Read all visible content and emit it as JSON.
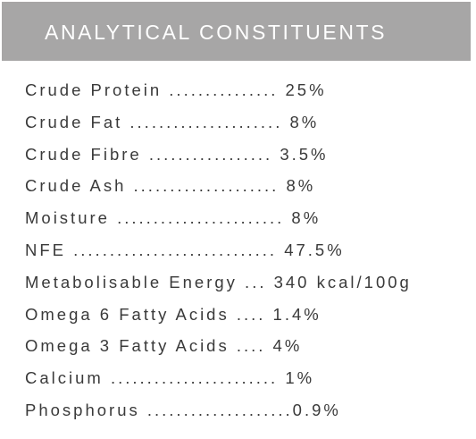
{
  "header": {
    "title": "ANALYTICAL CONSTITUENTS"
  },
  "rows": [
    "Crude Protein ............... 25%",
    "Crude Fat ..................... 8%",
    "Crude Fibre ................. 3.5%",
    "Crude Ash .................... 8%",
    "Moisture ....................... 8%",
    "NFE ............................ 47.5%",
    "Metabolisable Energy ... 340 kcal/100g",
    "Omega 6 Fatty Acids .... 1.4%",
    "Omega 3 Fatty Acids .... 4%",
    "Calcium ....................... 1%",
    "Phosphorus ....................0.9%"
  ]
}
